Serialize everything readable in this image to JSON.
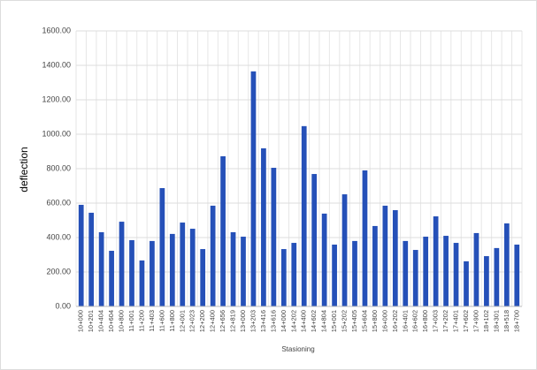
{
  "chart_data": {
    "type": "bar",
    "y_label": "deflection",
    "x_label": "Stasioning",
    "categories": [
      "10+000",
      "10+201",
      "10+404",
      "10+604",
      "10+800",
      "11+001",
      "11+200",
      "11+403",
      "11+600",
      "11+800",
      "12+001",
      "12+023",
      "12+200",
      "12+400",
      "12+656",
      "12+819",
      "13+000",
      "13+203",
      "13+416",
      "13+616",
      "14+000",
      "14+202",
      "14+400",
      "14+602",
      "14+804",
      "15+001",
      "15+202",
      "15+405",
      "15+604",
      "15+800",
      "16+000",
      "16+202",
      "16+401",
      "16+602",
      "16+800",
      "17+003",
      "17+202",
      "17+401",
      "17+602",
      "17+900",
      "18+102",
      "18+301",
      "18+518",
      "18+700"
    ],
    "values": [
      590,
      544,
      431,
      323,
      492,
      385,
      267,
      380,
      687,
      421,
      487,
      451,
      333,
      585,
      872,
      431,
      405,
      1365,
      918,
      805,
      333,
      369,
      1047,
      769,
      539,
      359,
      651,
      380,
      790,
      467,
      585,
      559,
      380,
      328,
      405,
      523,
      410,
      369,
      262,
      426,
      292,
      339,
      482,
      359
    ],
    "color": "#2550b8",
    "ylim": [
      0,
      1600
    ],
    "yticks": [
      {
        "value": 0,
        "label": "0.00"
      },
      {
        "value": 200,
        "label": "200.00"
      },
      {
        "value": 400,
        "label": "400.00"
      },
      {
        "value": 600,
        "label": "600.00"
      },
      {
        "value": 800,
        "label": "800.00"
      },
      {
        "value": 1000,
        "label": "1000.00"
      },
      {
        "value": 1200,
        "label": "1200.00"
      },
      {
        "value": 1400,
        "label": "1400.00"
      },
      {
        "value": 1600,
        "label": "1600.00"
      }
    ],
    "grid": true
  }
}
